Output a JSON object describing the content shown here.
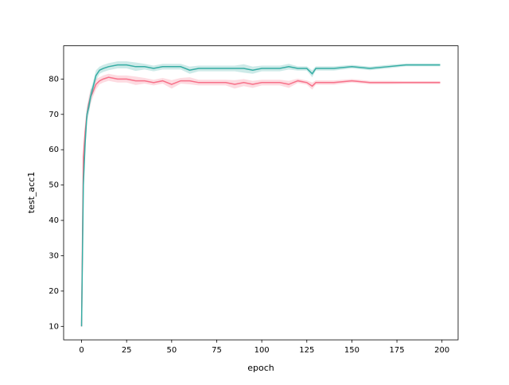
{
  "chart_data": {
    "type": "line",
    "xlabel": "epoch",
    "ylabel": "test_acc1",
    "x": [
      0,
      1,
      2,
      3,
      4,
      5,
      6,
      8,
      10,
      12,
      15,
      20,
      25,
      30,
      35,
      40,
      45,
      50,
      55,
      60,
      65,
      70,
      75,
      80,
      85,
      90,
      95,
      100,
      110,
      115,
      120,
      125,
      128,
      130,
      140,
      150,
      160,
      170,
      180,
      190,
      199
    ],
    "series": [
      {
        "color": "#f77189",
        "values": [
          10,
          58,
          65,
          70,
          73,
          75,
          76,
          78.5,
          79.5,
          80,
          80.5,
          80,
          80,
          79.5,
          79.5,
          79,
          79.5,
          78.5,
          79.5,
          79.5,
          79,
          79,
          79,
          79,
          78.5,
          79,
          78.5,
          79,
          79,
          78.5,
          79.5,
          79,
          78,
          79,
          79,
          79.5,
          79,
          79,
          79,
          79,
          79
        ],
        "errors": [
          0,
          3,
          3,
          2,
          2,
          2,
          1.5,
          1.5,
          1,
          1,
          1,
          1,
          1,
          1.2,
          0.8,
          0.8,
          0.8,
          1.2,
          0.8,
          1,
          0.8,
          0.8,
          0.8,
          0.8,
          1.2,
          1,
          1,
          0.8,
          0.8,
          1,
          0.6,
          0.6,
          1,
          0.6,
          0.6,
          0.5,
          0.5,
          0.5,
          0.4,
          0.4,
          0.4
        ]
      },
      {
        "color": "#36ada4",
        "values": [
          10,
          50,
          62,
          70,
          72,
          75,
          77,
          81,
          82.5,
          83,
          83.5,
          84,
          84,
          83.5,
          83.5,
          83,
          83.5,
          83.5,
          83.5,
          82.5,
          83,
          83,
          83,
          83,
          83,
          83,
          82.5,
          83,
          83,
          83.5,
          83,
          83,
          81.5,
          83,
          83,
          83.5,
          83,
          83.5,
          84,
          84,
          84
        ],
        "errors": [
          0,
          3,
          3,
          2,
          2,
          2,
          1.5,
          1.5,
          1,
          1,
          1,
          1,
          1,
          1.2,
          0.8,
          0.8,
          0.8,
          0.8,
          0.8,
          1,
          0.8,
          0.8,
          0.8,
          0.8,
          0.8,
          1.2,
          1,
          0.8,
          0.8,
          0.8,
          0.6,
          0.6,
          1,
          0.6,
          0.6,
          0.5,
          0.5,
          0.5,
          0.4,
          0.4,
          0.4
        ]
      }
    ],
    "xlim": [
      -9.95,
      208.95
    ],
    "ylim": [
      6.2,
      89.4
    ],
    "xticks": [
      0,
      25,
      50,
      75,
      100,
      125,
      150,
      175,
      200
    ],
    "yticks": [
      10,
      20,
      30,
      40,
      50,
      60,
      70,
      80
    ]
  }
}
